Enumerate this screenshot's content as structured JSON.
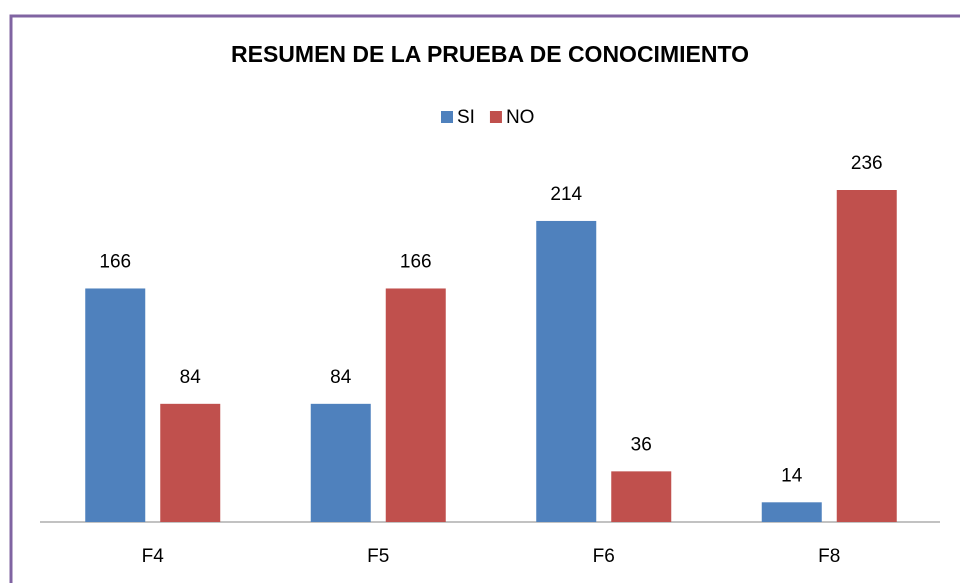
{
  "chart_data": {
    "type": "bar",
    "title": "RESUMEN DE LA PRUEBA DE CONOCIMIENTO",
    "categories": [
      "F4",
      "F5",
      "F6",
      "F8"
    ],
    "series": [
      {
        "name": "SI",
        "color": "#4f81bd",
        "values": [
          166,
          84,
          214,
          14
        ]
      },
      {
        "name": "NO",
        "color": "#c0504d",
        "values": [
          84,
          166,
          36,
          236
        ]
      }
    ]
  }
}
